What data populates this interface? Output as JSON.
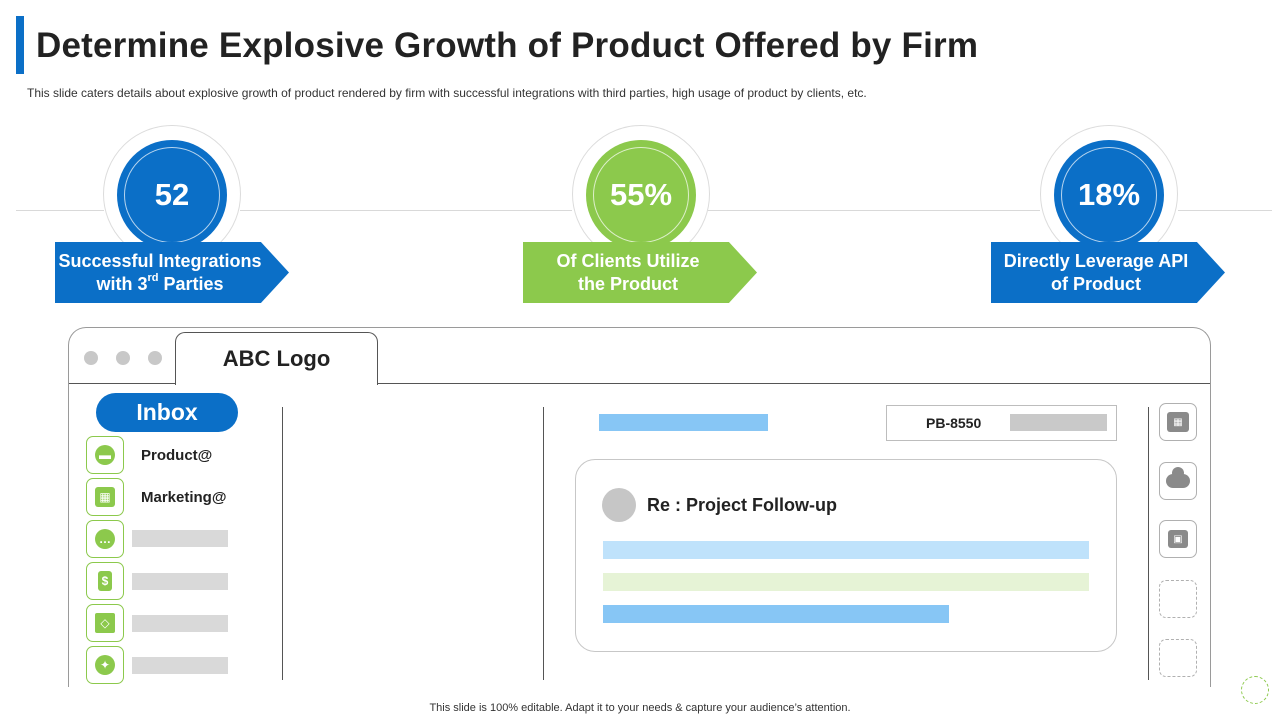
{
  "slide": {
    "title": "Determine Explosive Growth of Product Offered by Firm",
    "subtitle": "This slide caters details about explosive growth of product rendered  by firm with successful integrations with third parties, high usage of product by clients, etc.",
    "footer": "This slide is 100% editable. Adapt it to your needs & capture your audience’s attention."
  },
  "stats": [
    {
      "value": "52",
      "line1": "Successful Integrations",
      "line2_pre": "with 3",
      "line2_sup": "rd",
      "line2_post": " Parties",
      "color": "#0b6fc7"
    },
    {
      "value": "55%",
      "line1": "Of Clients Utilize",
      "line2": "the Product",
      "color": "#8cc94c"
    },
    {
      "value": "18%",
      "line1": "Directly Leverage API",
      "line2": "of Product",
      "color": "#0b6fc7"
    }
  ],
  "browser": {
    "tab_label": "ABC Logo",
    "inbox_label": "Inbox",
    "sidebar": {
      "items": [
        {
          "icon": "briefcase-icon",
          "label": "Product@"
        },
        {
          "icon": "chart-icon",
          "label": "Marketing@"
        },
        {
          "icon": "chat-icon",
          "label": ""
        },
        {
          "icon": "mobile-dollar-icon",
          "label": ""
        },
        {
          "icon": "box-icon",
          "label": ""
        },
        {
          "icon": "twitter-icon",
          "label": ""
        }
      ]
    },
    "ticket_id": "PB-8550",
    "email_subject": "Re : Project Follow-up",
    "right_icons": [
      "calendar-icon",
      "cloud-icon",
      "shopping-bag-icon",
      "empty-slot",
      "empty-slot"
    ]
  },
  "colors": {
    "blue": "#0b6fc7",
    "green": "#8cc94c",
    "light_blue": "#87c6f5",
    "pale_blue": "#bfe2fb",
    "pale_green": "#e6f3d6"
  }
}
